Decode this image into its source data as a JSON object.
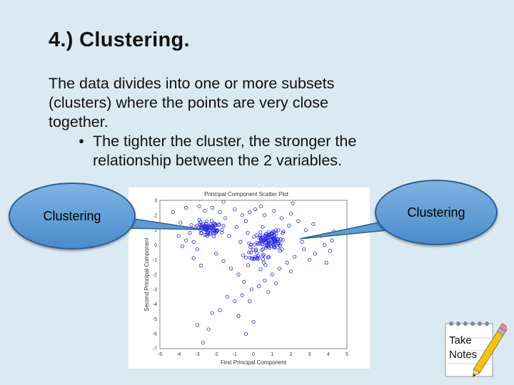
{
  "slide": {
    "title": "4.)  Clustering.",
    "paragraph_lines": [
      "The data divides into one or more subsets",
      "(clusters) where the points are very close",
      "together."
    ],
    "bullet_lines": [
      "The tighter the cluster, the stronger the",
      "relationship between the 2 variables."
    ]
  },
  "callouts": {
    "left_label": "Clustering",
    "right_label": "Clustering"
  },
  "take_notes": {
    "line1": "Take",
    "line2": "Notes"
  },
  "chart_data": {
    "type": "scatter",
    "title": "Principal Component Scatter Plot",
    "xlabel": "First Principal Component",
    "ylabel": "Second Principal Component",
    "xlim": [
      -5,
      5
    ],
    "ylim": [
      -7,
      3
    ],
    "xticks": [
      "-5",
      "-4",
      "-3",
      "-2",
      "-1",
      "0",
      "1",
      "2",
      "3",
      "4",
      "5"
    ],
    "yticks": [
      "3",
      "2",
      "1",
      "0",
      "-1",
      "-2",
      "-3",
      "-4",
      "-5",
      "-6",
      "-7"
    ],
    "marker_color": "#2a2ae0",
    "clusters": [
      {
        "center": [
          -2.4,
          1.1
        ],
        "spread": [
          0.35,
          0.25
        ],
        "count": 75
      },
      {
        "center": [
          0.9,
          0.3
        ],
        "spread": [
          0.4,
          0.28
        ],
        "count": 100
      },
      {
        "center": [
          0.2,
          -0.8
        ],
        "spread": [
          0.3,
          0.35
        ],
        "count": 30
      }
    ],
    "points": [
      [
        -4.3,
        2.2
      ],
      [
        -3.9,
        1.5
      ],
      [
        -3.6,
        2.5
      ],
      [
        -3.4,
        0.8
      ],
      [
        -3.2,
        0.2
      ],
      [
        -3.0,
        -0.3
      ],
      [
        -2.9,
        2.6
      ],
      [
        -2.6,
        2.3
      ],
      [
        -2.2,
        2.5
      ],
      [
        -1.8,
        2.2
      ],
      [
        -1.5,
        1.8
      ],
      [
        -1.3,
        0.6
      ],
      [
        -1.0,
        2.4
      ],
      [
        -0.9,
        1.2
      ],
      [
        -0.6,
        2.0
      ],
      [
        -0.4,
        1.6
      ],
      [
        -0.2,
        2.2
      ],
      [
        0.1,
        2.4
      ],
      [
        0.4,
        2.6
      ],
      [
        0.6,
        2.0
      ],
      [
        1.1,
        2.3
      ],
      [
        1.5,
        1.8
      ],
      [
        2.0,
        2.1
      ],
      [
        2.4,
        1.6
      ],
      [
        2.8,
        1.0
      ],
      [
        3.2,
        1.4
      ],
      [
        3.6,
        0.6
      ],
      [
        3.8,
        0.0
      ],
      [
        4.3,
        0.9
      ],
      [
        4.1,
        -0.4
      ],
      [
        3.3,
        -0.6
      ],
      [
        2.7,
        -0.3
      ],
      [
        2.2,
        -0.8
      ],
      [
        1.8,
        -1.2
      ],
      [
        1.4,
        -1.6
      ],
      [
        1.0,
        -2.0
      ],
      [
        0.6,
        -2.4
      ],
      [
        0.3,
        -2.8
      ],
      [
        -0.1,
        -3.0
      ],
      [
        -0.5,
        -2.5
      ],
      [
        -0.8,
        -2.0
      ],
      [
        -1.2,
        -1.6
      ],
      [
        -1.6,
        -1.1
      ],
      [
        -2.0,
        -0.6
      ],
      [
        -1.4,
        -3.5
      ],
      [
        -1.0,
        -3.8
      ],
      [
        -0.6,
        -3.4
      ],
      [
        -0.2,
        -3.8
      ],
      [
        -1.8,
        -4.4
      ],
      [
        -2.2,
        -4.6
      ],
      [
        -0.8,
        -4.8
      ],
      [
        0.0,
        -5.2
      ],
      [
        -3.0,
        -5.4
      ],
      [
        -2.4,
        -5.7
      ],
      [
        -0.4,
        -6.0
      ],
      [
        -2.7,
        -6.6
      ],
      [
        -3.2,
        -0.9
      ],
      [
        -2.8,
        -1.4
      ],
      [
        -3.6,
        0.3
      ],
      [
        -4.0,
        0.6
      ],
      [
        -3.8,
        -0.1
      ],
      [
        1.6,
        0.9
      ],
      [
        2.6,
        0.2
      ],
      [
        3.0,
        -1.0
      ],
      [
        2.0,
        -1.8
      ],
      [
        0.8,
        -3.2
      ],
      [
        1.2,
        -2.6
      ],
      [
        -0.3,
        0.8
      ],
      [
        0.5,
        1.2
      ],
      [
        -0.7,
        0.2
      ],
      [
        1.9,
        1.3
      ],
      [
        3.9,
        -1.2
      ],
      [
        4.2,
        0.3
      ],
      [
        -1.6,
        2.9
      ],
      [
        2.1,
        2.8
      ]
    ]
  }
}
